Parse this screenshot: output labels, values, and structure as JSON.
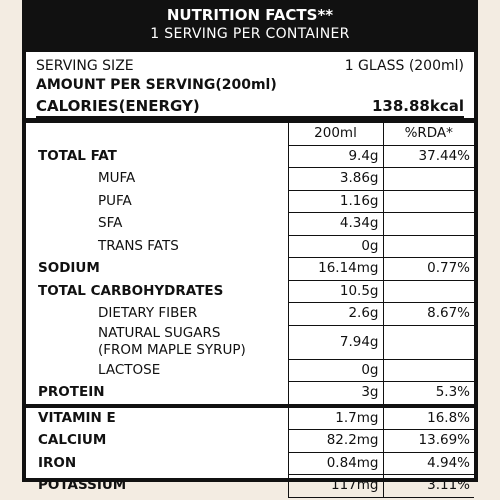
{
  "header": {
    "title": "NUTRITION FACTS**",
    "subtitle": "1 SERVING PER CONTAINER"
  },
  "serving": {
    "size_label": "SERVING SIZE",
    "size_value": "1 GLASS (200ml)",
    "amount_per_serving": "AMOUNT PER SERVING(200ml)",
    "calories_label": "CALORIES(ENERGY)",
    "calories_value": "138.88kcal"
  },
  "table": {
    "columns": [
      "200ml",
      "%RDA*"
    ],
    "sections": [
      {
        "rows": [
          {
            "name": "TOTAL FAT",
            "amount": "9.4g",
            "rda": "37.44%",
            "sub": [
              {
                "name": "MUFA",
                "amount": "3.86g",
                "rda": null
              },
              {
                "name": "PUFA",
                "amount": "1.16g",
                "rda": null
              },
              {
                "name": "SFA",
                "amount": "4.34g",
                "rda": null
              },
              {
                "name": "TRANS FATS",
                "amount": "0g",
                "rda": null
              }
            ]
          },
          {
            "name": "SODIUM",
            "amount": "16.14mg",
            "rda": "0.77%",
            "sub": []
          },
          {
            "name": "TOTAL CARBOHYDRATES",
            "amount": "10.5g",
            "rda": null,
            "sub": [
              {
                "name": "DIETARY FIBER",
                "amount": "2.6g",
                "rda": "8.67%"
              },
              {
                "name": "NATURAL SUGARS\n(FROM MAPLE SYRUP)",
                "amount": "7.94g",
                "rda": null
              },
              {
                "name": "LACTOSE",
                "amount": "0g",
                "rda": null
              }
            ]
          },
          {
            "name": "PROTEIN",
            "amount": "3g",
            "rda": "5.3%",
            "sub": []
          }
        ]
      },
      {
        "rows": [
          {
            "name": "VITAMIN E",
            "amount": "1.7mg",
            "rda": "16.8%",
            "sub": []
          },
          {
            "name": "CALCIUM",
            "amount": "82.2mg",
            "rda": "13.69%",
            "sub": []
          },
          {
            "name": "IRON",
            "amount": "0.84mg",
            "rda": "4.94%",
            "sub": []
          },
          {
            "name": "POTASSIUM",
            "amount": "117mg",
            "rda": "3.11%",
            "sub": []
          }
        ]
      }
    ]
  }
}
